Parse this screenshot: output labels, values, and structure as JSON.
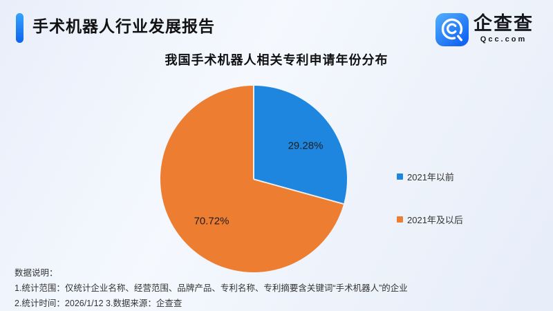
{
  "header": {
    "title": "手术机器人行业发展报告",
    "logo": {
      "name": "企查查",
      "domain": "Qcc.com"
    }
  },
  "chart_data": {
    "type": "pie",
    "title": "我国手术机器人相关专利申请年份分布",
    "labels": [
      "2021年以前",
      "2021年及以后"
    ],
    "values": [
      29.28,
      70.72
    ],
    "value_labels": [
      "29.28%",
      "70.72%"
    ],
    "colors": [
      "#1E86DF",
      "#ED7D31"
    ],
    "start_angle": "12-oclock",
    "direction": "clockwise",
    "legend_position": "right"
  },
  "footnotes": {
    "heading": "数据说明：",
    "line1": "1.统计范围：仅统计企业名称、经营范围、品牌产品、专利名称、专利摘要含关键词“手术机器人”的企业",
    "line2": "2.统计时间：2026/1/12  3.数据来源：企查查"
  }
}
